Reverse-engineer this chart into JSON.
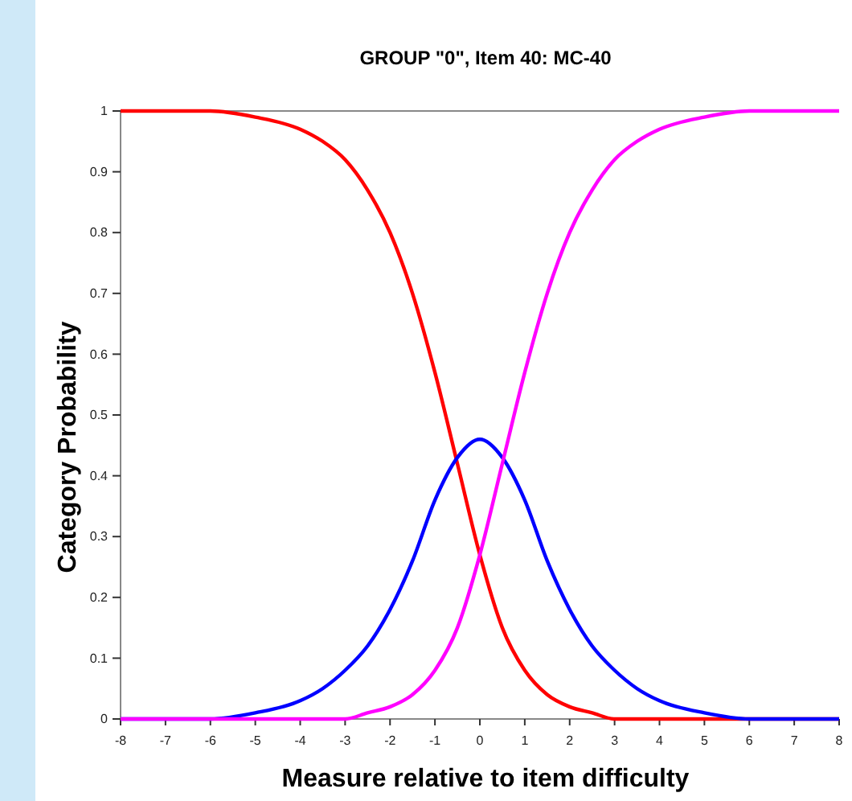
{
  "chart_data": {
    "type": "line",
    "title": "GROUP \"0\", Item 40: MC-40",
    "xlabel": "Measure relative to item difficulty",
    "ylabel": "Category Probability",
    "x": [
      -8,
      -7,
      -6,
      -5,
      -4,
      -3.5,
      -3,
      -2.5,
      -2,
      -1.5,
      -1,
      -0.5,
      0,
      0.5,
      1,
      1.5,
      2,
      2.5,
      3,
      3.5,
      4,
      5,
      6,
      7,
      8
    ],
    "series": [
      {
        "color": "#ff0000",
        "values": [
          1,
          1,
          1,
          0.99,
          0.97,
          0.95,
          0.92,
          0.87,
          0.8,
          0.7,
          0.57,
          0.42,
          0.27,
          0.15,
          0.08,
          0.04,
          0.02,
          0.01,
          0,
          0,
          0,
          0,
          0,
          0,
          0
        ]
      },
      {
        "color": "#0000ff",
        "values": [
          0,
          0,
          0,
          0.01,
          0.03,
          0.05,
          0.08,
          0.12,
          0.18,
          0.26,
          0.36,
          0.43,
          0.46,
          0.43,
          0.36,
          0.26,
          0.18,
          0.12,
          0.08,
          0.05,
          0.03,
          0.01,
          0,
          0,
          0
        ]
      },
      {
        "color": "#ff00ff",
        "values": [
          0,
          0,
          0,
          0,
          0,
          0,
          0,
          0.01,
          0.02,
          0.04,
          0.08,
          0.15,
          0.27,
          0.42,
          0.57,
          0.7,
          0.8,
          0.87,
          0.92,
          0.95,
          0.97,
          0.99,
          1,
          1,
          1
        ]
      }
    ],
    "xlim": [
      -8,
      8
    ],
    "xticks": [
      -8,
      -7,
      -6,
      -5,
      -4,
      -3,
      -2,
      -1,
      0,
      1,
      2,
      3,
      4,
      5,
      6,
      7,
      8
    ],
    "ylim": [
      0,
      1
    ],
    "yticks": [
      0,
      0.1,
      0.2,
      0.3,
      0.4,
      0.5,
      0.6,
      0.7,
      0.8,
      0.9,
      1
    ],
    "grid": false,
    "marker": "none",
    "line_style": "solid"
  }
}
